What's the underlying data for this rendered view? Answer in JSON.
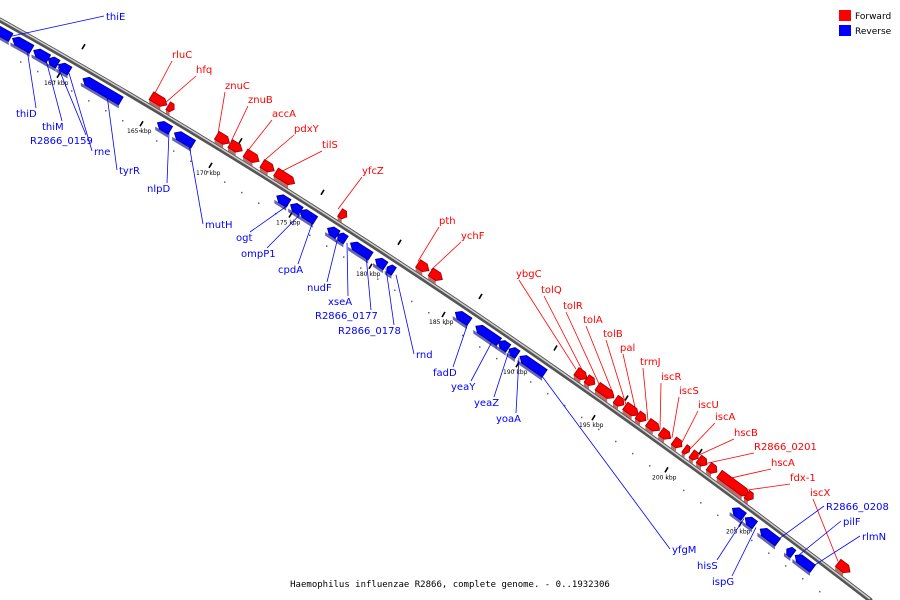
{
  "caption": "Haemophilus influenzae R2866, complete genome. - 0..1932306",
  "legend": [
    {
      "label": "Forward",
      "color": "#ff0000"
    },
    {
      "label": "Reverse",
      "color": "#0000ff"
    }
  ],
  "ticks": [
    "160 kbp",
    "165 kbp",
    "170 kbp",
    "175 kbp",
    "180 kbp",
    "185 kbp",
    "190 kbp",
    "195 kbp",
    "200 kbp",
    "205 kbp"
  ],
  "genes_forward": [
    "rluC",
    "hfq",
    "znuC",
    "znuB",
    "accA",
    "pdxY",
    "tilS",
    "yfcZ",
    "pth",
    "ychF",
    "ybgC",
    "tolQ",
    "tolR",
    "tolA",
    "tolB",
    "pal",
    "trmJ",
    "iscR",
    "iscS",
    "iscU",
    "iscA",
    "hscB",
    "R2866_0201",
    "hscA",
    "fdx-1",
    "iscX"
  ],
  "genes_reverse": [
    "thiE",
    "thiD",
    "thiM",
    "R2866_0159",
    "rne",
    "tyrR",
    "nlpD",
    "mutH",
    "ogt",
    "ompP1",
    "cpdA",
    "nudF",
    "xseA",
    "R2866_0177",
    "R2866_0178",
    "rnd",
    "fadD",
    "yeaY",
    "yeaZ",
    "yoaA",
    "yfgM",
    "hisS",
    "ispG",
    "R2866_0208",
    "pilF",
    "rlmN"
  ]
}
